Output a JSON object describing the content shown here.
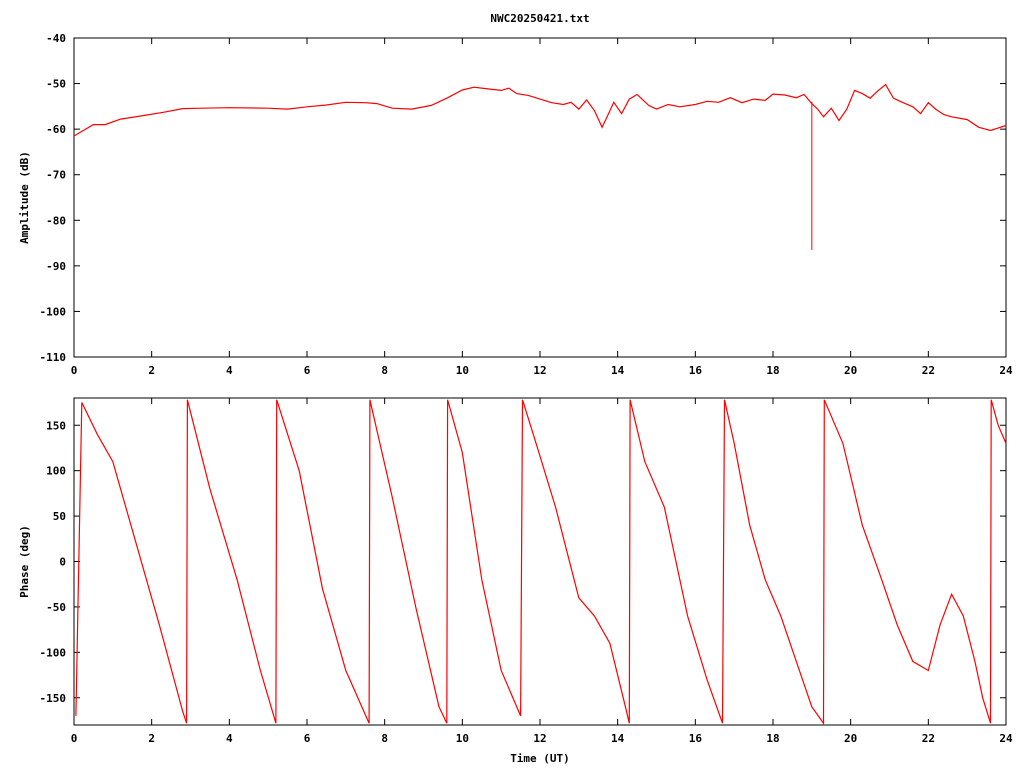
{
  "chart_data": [
    {
      "type": "line",
      "title": "NWC20250421.txt",
      "xlabel": "",
      "ylabel": "Amplitude (dB)",
      "xlim": [
        0,
        24
      ],
      "ylim": [
        -110,
        -40
      ],
      "xticks": [
        "0",
        "2",
        "4",
        "6",
        "8",
        "10",
        "12",
        "14",
        "16",
        "18",
        "20",
        "22",
        "24"
      ],
      "yticks": [
        "-40",
        "-50",
        "-60",
        "-70",
        "-80",
        "-90",
        "-100",
        "-110"
      ],
      "color": "#ff0000",
      "series": [
        {
          "x": [
            0,
            0.2,
            0.5,
            0.8,
            1.2,
            1.8,
            2.3,
            2.8,
            3.3,
            4,
            5,
            5.5,
            6,
            6.5,
            7,
            7.5,
            7.8,
            8.2,
            8.7,
            9.2,
            9.6,
            10,
            10.3,
            10.6,
            11,
            11.2,
            11.4,
            11.7,
            12,
            12.3,
            12.6,
            12.8,
            13,
            13.2,
            13.4,
            13.6,
            13.7,
            13.9,
            14.1,
            14.3,
            14.5,
            14.8,
            15,
            15.3,
            15.6,
            16,
            16.3,
            16.6,
            16.9,
            17.2,
            17.5,
            17.8,
            18,
            18.3,
            18.6,
            18.8,
            19,
            19.15,
            19.3,
            19.5,
            19.7,
            19.9,
            20.1,
            20.3,
            20.5,
            20.7,
            20.9,
            21.1,
            21.3,
            21.6,
            21.8,
            22,
            22.2,
            22.4,
            22.6,
            23,
            23.3,
            23.6,
            24
          ],
          "y": [
            -61.5,
            -60.5,
            -59,
            -59,
            -57.8,
            -57,
            -56.3,
            -55.5,
            -55.4,
            -55.3,
            -55.4,
            -55.6,
            -55.1,
            -54.7,
            -54.1,
            -54.2,
            -54.4,
            -55.4,
            -55.6,
            -54.8,
            -53.2,
            -51.4,
            -50.8,
            -51.1,
            -51.5,
            -51.0,
            -52.2,
            -52.6,
            -53.4,
            -54.2,
            -54.6,
            -54.1,
            -55.6,
            -53.6,
            -55.9,
            -59.6,
            -57.8,
            -54.1,
            -56.6,
            -53.4,
            -52.4,
            -54.8,
            -55.6,
            -54.6,
            -55.1,
            -54.6,
            -53.9,
            -54.1,
            -53.1,
            -54.2,
            -53.4,
            -53.7,
            -52.3,
            -52.5,
            -53.1,
            -52.4,
            -54.4,
            -55.6,
            -57.3,
            -55.4,
            -58.1,
            -55.6,
            -51.5,
            -52.2,
            -53.2,
            -51.6,
            -50.2,
            -53.2,
            -54.0,
            -55.1,
            -56.6,
            -54.2,
            -55.7,
            -56.8,
            -57.3,
            -57.9,
            -59.6,
            -60.3,
            -59.2
          ]
        }
      ],
      "spikes": [
        {
          "x": 19.0,
          "y": -86.5
        }
      ]
    },
    {
      "type": "line",
      "title": "",
      "xlabel": "Time (UT)",
      "ylabel": "Phase (deg)",
      "xlim": [
        0,
        24
      ],
      "ylim": [
        -180,
        180
      ],
      "xticks": [
        "0",
        "2",
        "4",
        "6",
        "8",
        "10",
        "12",
        "14",
        "16",
        "18",
        "20",
        "22",
        "24"
      ],
      "yticks": [
        "150",
        "100",
        "50",
        "0",
        "-50",
        "-100",
        "-150"
      ],
      "color": "#ff0000",
      "series": [
        {
          "x": [
            0.05,
            0.2,
            0.6,
            1.0,
            1.6,
            2.2,
            2.8,
            2.9,
            2.92,
            3.5,
            4.2,
            4.8,
            5.2,
            5.22,
            5.8,
            6.4,
            7.0,
            7.6,
            7.62,
            8.2,
            8.8,
            9.4,
            9.6,
            9.62,
            10.0,
            10.5,
            11.0,
            11.5,
            11.55,
            11.9,
            12.4,
            13.0,
            13.4,
            13.8,
            14.2,
            14.3,
            14.32,
            14.7,
            15.2,
            15.8,
            16.3,
            16.7,
            16.75,
            17.0,
            17.4,
            17.8,
            18.2,
            18.6,
            19.0,
            19.3,
            19.32,
            19.8,
            20.3,
            20.8,
            21.2,
            21.6,
            22.0,
            22.3,
            22.6,
            22.9,
            23.2,
            23.4,
            23.6,
            23.62,
            23.8,
            24.0
          ],
          "y": [
            -170,
            175,
            140,
            110,
            20,
            -70,
            -165,
            -178,
            178,
            80,
            -20,
            -120,
            -178,
            178,
            100,
            -30,
            -120,
            -178,
            178,
            70,
            -50,
            -160,
            -178,
            178,
            120,
            -20,
            -120,
            -170,
            178,
            130,
            60,
            -40,
            -60,
            -90,
            -160,
            -178,
            178,
            110,
            60,
            -60,
            -130,
            -178,
            178,
            130,
            40,
            -20,
            -60,
            -110,
            -160,
            -178,
            178,
            130,
            40,
            -20,
            -70,
            -110,
            -120,
            -70,
            -36,
            -60,
            -110,
            -150,
            -178,
            178,
            150,
            130
          ]
        }
      ]
    }
  ]
}
